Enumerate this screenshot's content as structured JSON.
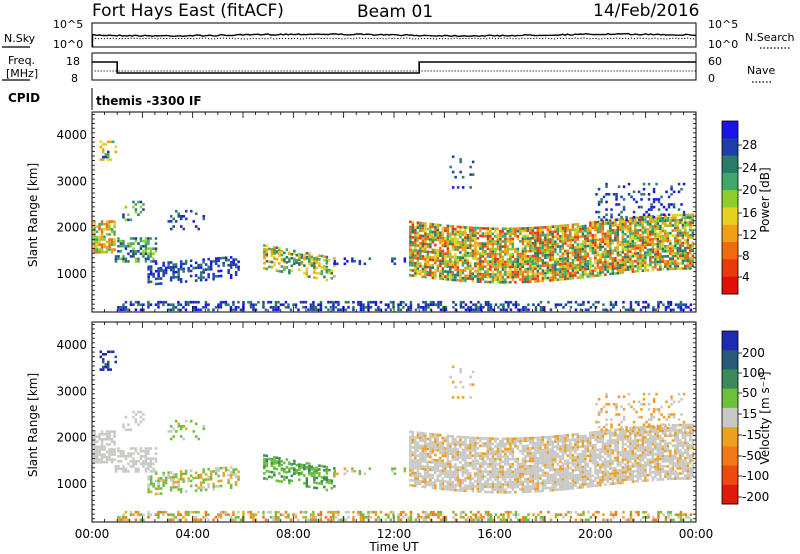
{
  "header": {
    "station": "Fort Hays East (fitACF)",
    "beam": "Beam 01",
    "date": "14/Feb/2016"
  },
  "panels": {
    "nsky": {
      "left_label": "N.Sky",
      "right_label": "N.Search",
      "left_ticks": [
        "10^5",
        "10^0"
      ],
      "right_ticks": [
        "10^5",
        "10^0"
      ]
    },
    "freq": {
      "left_label_top": "Freq.",
      "left_label_bottom": "[MHz]",
      "right_label": "Nave",
      "left_ticks": [
        "18",
        "8"
      ],
      "right_ticks": [
        "60",
        "0"
      ]
    },
    "cpid": {
      "label": "CPID",
      "text": "themis  -3300 IF"
    }
  },
  "chart_data": [
    {
      "type": "heatmap",
      "quantity": "Power",
      "ylabel": "Slant Range [km]",
      "xlabel": "Time UT",
      "ylim": [
        180,
        4500
      ],
      "yticks": [
        "4000",
        "3000",
        "2000",
        "1000"
      ],
      "xticks": [
        "00:00",
        "04:00",
        "08:00",
        "12:00",
        "16:00",
        "20:00",
        "00:00"
      ],
      "colorbar": {
        "label": "Power [dB]",
        "ticks": [
          "28",
          "24",
          "20",
          "16",
          "12",
          "8",
          "4"
        ],
        "colors": [
          "#1a14e6",
          "#1e3ea8",
          "#2a7a6a",
          "#3ea86a",
          "#8ccf2c",
          "#e6d020",
          "#f0a018",
          "#f06a10",
          "#e83a0c",
          "#e01008"
        ]
      }
    },
    {
      "type": "heatmap",
      "quantity": "Velocity",
      "ylabel": "Slant Range [km]",
      "xlabel": "Time UT",
      "ylim": [
        180,
        4500
      ],
      "yticks": [
        "4000",
        "3000",
        "2000",
        "1000"
      ],
      "xticks": [
        "00:00",
        "04:00",
        "08:00",
        "12:00",
        "16:00",
        "20:00",
        "00:00"
      ],
      "colorbar": {
        "label": "Velocity [m s⁻¹]",
        "ticks": [
          "200",
          "100",
          "50",
          "15",
          "-15",
          "-50",
          "-100",
          "-200"
        ],
        "colors": [
          "#1e2ab0",
          "#2a5a7a",
          "#3a8a5a",
          "#6cc03a",
          "#c8c8c4",
          "#f0a020",
          "#f07a18",
          "#ec4a10",
          "#e01a0a"
        ]
      }
    }
  ]
}
